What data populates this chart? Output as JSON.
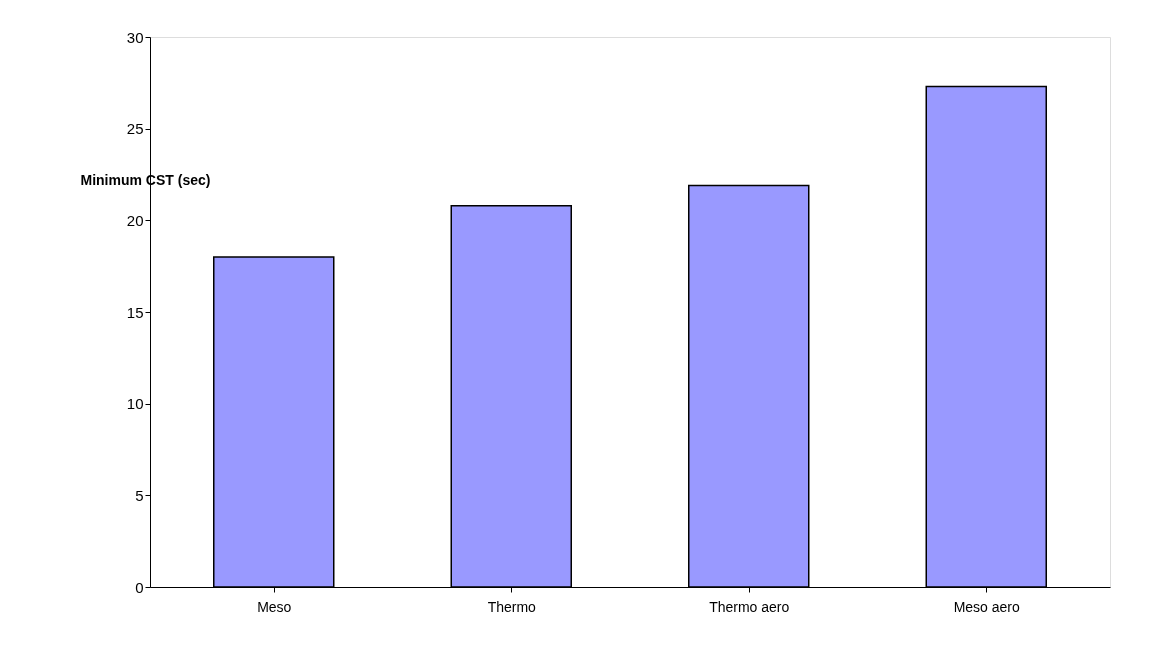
{
  "chart_data": {
    "type": "bar",
    "ylabel": "Minimum CST (sec)",
    "categories": [
      "Meso",
      "Thermo",
      "Thermo aero",
      "Meso aero"
    ],
    "values": [
      18.0,
      20.8,
      21.9,
      27.3
    ],
    "color": "#9999ff",
    "ylim": [
      0,
      30
    ],
    "yticks": [
      0,
      5,
      10,
      15,
      20,
      25,
      30
    ],
    "grid": false
  }
}
